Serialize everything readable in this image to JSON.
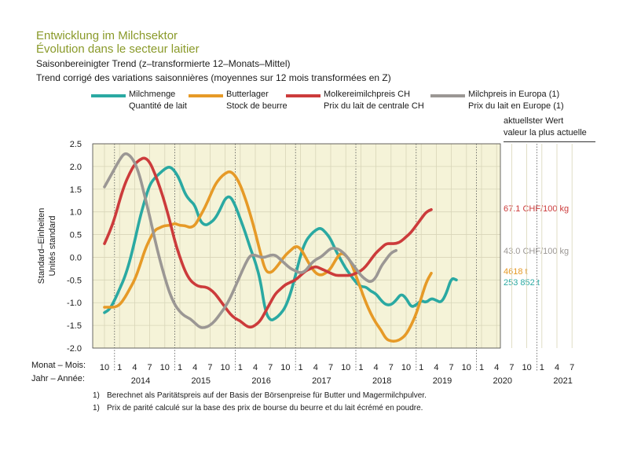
{
  "title_de": "Entwicklung im Milchsektor",
  "title_fr": "Évolution dans le secteur laitier",
  "subtitle_de": "Saisonbereinigter Trend (z–transformierte 12–Monats–Mittel)",
  "subtitle_fr": "Trend corrigé des variations saisonnières (moyennes sur 12 mois transformées en Z)",
  "current_value_header": [
    "aktuellster Wert",
    "valeur la plus actuelle"
  ],
  "colors": {
    "plot_bg": "#f5f3d8",
    "milk": "#2aa9a2",
    "butter": "#e69a27",
    "price_ch": "#cc3b3b",
    "price_eu": "#9b9794"
  },
  "legend": [
    {
      "de": "Milchmenge",
      "fr": "Quantité de lait",
      "color": "#2aa9a2"
    },
    {
      "de": "Butterlager",
      "fr": "Stock de beurre",
      "color": "#e69a27"
    },
    {
      "de": "Molkereimilchpreis CH",
      "fr": "Prix du lait de centrale CH",
      "color": "#cc3b3b"
    },
    {
      "de": "Milchpreis in Europa (1)",
      "fr": "Prix du lait en Europe (1)",
      "color": "#9b9794"
    }
  ],
  "current_values": [
    {
      "label": "67.1 CHF/100 kg",
      "color": "#cc3b3b"
    },
    {
      "label": "43.0 CHF/100 kg",
      "color": "#9b9794"
    },
    {
      "label": "4618 t",
      "color": "#e69a27"
    },
    {
      "label": "253 852 t",
      "color": "#2aa9a2"
    }
  ],
  "axis_row_labels": [
    "Monat – Mois:",
    "Jahr – Année:"
  ],
  "footnotes": [
    {
      "mark": "1)",
      "text": "Berechnet als Paritätspreis auf der Basis der Börsenpreise für Butter und Magermilchpulver."
    },
    {
      "mark": "1)",
      "text": "Prix de parité calculé sur la base des prix de bourse du beurre et du lait écrémé en poudre."
    }
  ],
  "chart_data": {
    "type": "line",
    "ylabel": [
      "Standard–Einheiten",
      "Unités standard"
    ],
    "ylim": [
      -2.0,
      2.5
    ],
    "yticks": [
      "2.5",
      "2.0",
      "1.5",
      "1.0",
      "0.5",
      "0.0",
      "-0.5",
      "-1.0",
      "-1.5",
      "-2.0"
    ],
    "month_ticks": [
      "10",
      "1",
      "4",
      "7",
      "10",
      "1",
      "4",
      "7",
      "10",
      "1",
      "4",
      "7",
      "10",
      "1",
      "4",
      "7",
      "10",
      "1",
      "4",
      "7",
      "10",
      "1",
      "4",
      "7",
      "10",
      "1",
      "4",
      "7",
      "10",
      "1",
      "4",
      "7"
    ],
    "year_labels": [
      "2014",
      "2015",
      "2016",
      "2017",
      "2018",
      "2019",
      "2020",
      "2021"
    ],
    "x_start": "2013-10",
    "series": [
      {
        "name": "Milchmenge",
        "color": "#2aa9a2",
        "values": [
          -1.22,
          -1.15,
          -0.95,
          -0.7,
          -0.45,
          -0.1,
          0.35,
          0.85,
          1.25,
          1.6,
          1.75,
          1.85,
          1.95,
          2.0,
          1.9,
          1.7,
          1.4,
          1.25,
          1.15,
          0.8,
          0.7,
          0.75,
          0.85,
          1.05,
          1.3,
          1.35,
          1.15,
          0.85,
          0.55,
          0.2,
          -0.1,
          -0.5,
          -1.2,
          -1.4,
          -1.35,
          -1.25,
          -1.1,
          -0.8,
          -0.4,
          0.05,
          0.35,
          0.5,
          0.6,
          0.65,
          0.55,
          0.4,
          0.15,
          -0.05,
          -0.25,
          -0.4,
          -0.55,
          -0.65,
          -0.65,
          -0.75,
          -0.8,
          -0.95,
          -1.05,
          -1.05,
          -0.95,
          -0.8,
          -0.9,
          -1.1,
          -1.05,
          -0.95,
          -1.0,
          -0.9,
          -0.95,
          -1.0,
          -0.8,
          -0.45,
          -0.5
        ]
      },
      {
        "name": "Butterlager",
        "color": "#e69a27",
        "values": [
          -1.1,
          -1.1,
          -1.1,
          -1.05,
          -0.9,
          -0.7,
          -0.5,
          -0.2,
          0.15,
          0.4,
          0.6,
          0.65,
          0.7,
          0.7,
          0.75,
          0.7,
          0.7,
          0.65,
          0.7,
          0.9,
          1.1,
          1.35,
          1.6,
          1.75,
          1.85,
          1.9,
          1.8,
          1.6,
          1.3,
          0.95,
          0.55,
          0.1,
          -0.3,
          -0.35,
          -0.25,
          -0.1,
          0.05,
          0.15,
          0.25,
          0.2,
          0.0,
          -0.2,
          -0.35,
          -0.4,
          -0.35,
          -0.25,
          -0.05,
          0.1,
          0.05,
          -0.1,
          -0.4,
          -0.7,
          -1.0,
          -1.25,
          -1.45,
          -1.6,
          -1.8,
          -1.85,
          -1.85,
          -1.8,
          -1.7,
          -1.5,
          -1.25,
          -0.9,
          -0.55,
          -0.35
        ]
      },
      {
        "name": "Molkereimilchpreis CH",
        "color": "#cc3b3b",
        "values": [
          0.3,
          0.55,
          0.85,
          1.25,
          1.6,
          1.85,
          2.05,
          2.15,
          2.2,
          2.1,
          1.85,
          1.55,
          1.2,
          0.8,
          0.35,
          0.0,
          -0.3,
          -0.5,
          -0.6,
          -0.65,
          -0.65,
          -0.7,
          -0.8,
          -0.95,
          -1.1,
          -1.25,
          -1.35,
          -1.4,
          -1.5,
          -1.55,
          -1.5,
          -1.4,
          -1.2,
          -1.0,
          -0.8,
          -0.7,
          -0.6,
          -0.55,
          -0.5,
          -0.4,
          -0.3,
          -0.25,
          -0.2,
          -0.25,
          -0.3,
          -0.35,
          -0.4,
          -0.4,
          -0.4,
          -0.4,
          -0.35,
          -0.3,
          -0.2,
          -0.05,
          0.1,
          0.2,
          0.3,
          0.3,
          0.3,
          0.35,
          0.45,
          0.55,
          0.7,
          0.85,
          1.0,
          1.05
        ]
      },
      {
        "name": "Milchpreis in Europa (1)",
        "color": "#9b9794",
        "values": [
          1.55,
          1.75,
          1.95,
          2.15,
          2.3,
          2.25,
          2.1,
          1.8,
          1.35,
          0.9,
          0.4,
          -0.05,
          -0.45,
          -0.8,
          -1.05,
          -1.2,
          -1.3,
          -1.35,
          -1.45,
          -1.55,
          -1.55,
          -1.5,
          -1.4,
          -1.25,
          -1.1,
          -0.9,
          -0.65,
          -0.4,
          -0.15,
          0.05,
          0.05,
          0.0,
          0.0,
          0.05,
          0.05,
          -0.05,
          -0.15,
          -0.25,
          -0.3,
          -0.35,
          -0.3,
          -0.15,
          -0.05,
          0.0,
          0.1,
          0.2,
          0.2,
          0.15,
          0.05,
          -0.1,
          -0.25,
          -0.4,
          -0.5,
          -0.55,
          -0.45,
          -0.2,
          -0.05,
          0.1,
          0.15
        ]
      }
    ]
  }
}
